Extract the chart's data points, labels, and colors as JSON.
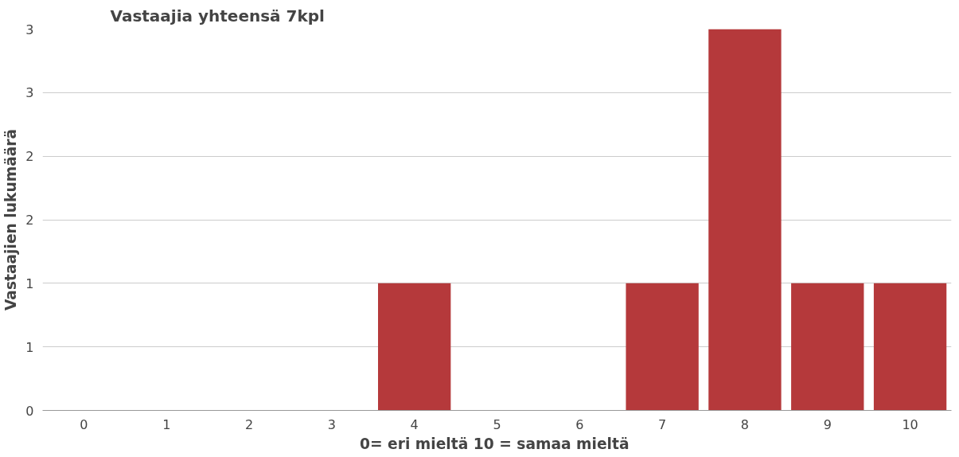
{
  "chart_data": {
    "type": "bar",
    "title": "Vastaajia yhteensä 7kpl",
    "xlabel": "0= eri mieltä  10 = samaa mieltä",
    "ylabel": "Vastaajien lukumäärä",
    "categories": [
      "0",
      "1",
      "2",
      "3",
      "4",
      "5",
      "6",
      "7",
      "8",
      "9",
      "10"
    ],
    "values": [
      0,
      0,
      0,
      0,
      1,
      0,
      0,
      1,
      3,
      1,
      1
    ],
    "color": "#b5393b",
    "ylim": [
      0,
      3
    ],
    "yticks": [
      0,
      {
        "value": 0.5,
        "label": "1"
      },
      1,
      {
        "value": 1.5,
        "label": "2"
      },
      2,
      {
        "value": 2.5,
        "label": "3"
      },
      3
    ],
    "grid": "y"
  }
}
